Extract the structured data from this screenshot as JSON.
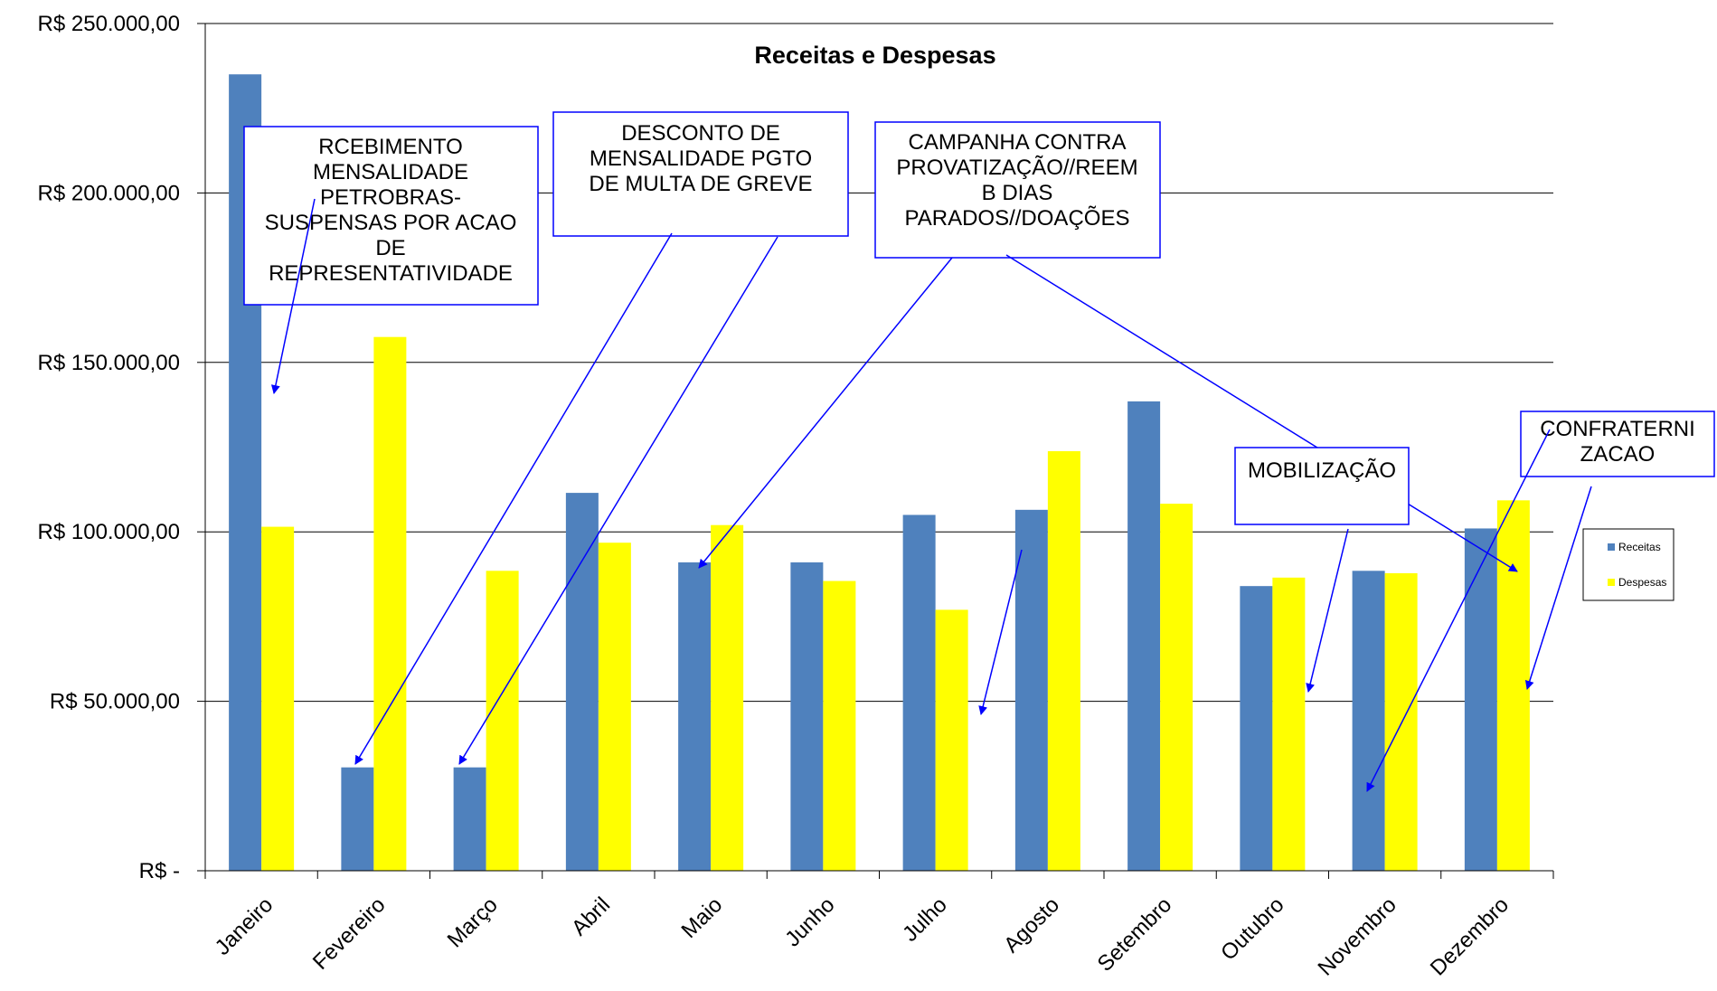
{
  "chart_data": {
    "type": "bar",
    "title": "Receitas e Despesas",
    "xlabel": "",
    "ylabel": "",
    "ylim": [
      0,
      250000
    ],
    "y_ticks": [
      0,
      50000,
      100000,
      150000,
      200000,
      250000
    ],
    "y_tick_labels": [
      "R$ -",
      "R$ 50.000,00",
      "R$ 100.000,00",
      "R$ 150.000,00",
      "R$ 200.000,00",
      "R$ 250.000,00"
    ],
    "grid": true,
    "legend_position": "right",
    "categories": [
      "Janeiro",
      "Fevereiro",
      "Março",
      "Abril",
      "Maio",
      "Junho",
      "Julho",
      "Agosto",
      "Setembro",
      "Outubro",
      "Novembro",
      "Dezembro"
    ],
    "series": [
      {
        "name": "Receitas",
        "color": "#4F81BD",
        "values": [
          235000,
          30500,
          30500,
          111500,
          91000,
          91000,
          105000,
          106500,
          138500,
          84000,
          88500,
          101000
        ]
      },
      {
        "name": "Despesas",
        "color": "#FFFF00",
        "values": [
          101500,
          157500,
          88500,
          96800,
          102000,
          85500,
          77000,
          123800,
          108300,
          86500,
          87800,
          109300
        ]
      }
    ],
    "annotations": [
      {
        "text": [
          "RCEBIMENTO",
          "MENSALIDADE",
          "PETROBRAS-",
          "SUSPENSAS POR ACAO",
          "DE",
          "REPRESENTATIVIDADE"
        ]
      },
      {
        "text": [
          "DESCONTO DE",
          "MENSALIDADE PGTO",
          "DE MULTA DE GREVE"
        ]
      },
      {
        "text": [
          "CAMPANHA CONTRA",
          "PROVATIZAÇÃO//REEM",
          "B DIAS",
          "PARADOS//DOAÇÕES"
        ]
      },
      {
        "text": [
          "MOBILIZAÇÃO"
        ]
      },
      {
        "text": [
          "CONFRATERNI",
          "ZACAO"
        ]
      }
    ]
  }
}
